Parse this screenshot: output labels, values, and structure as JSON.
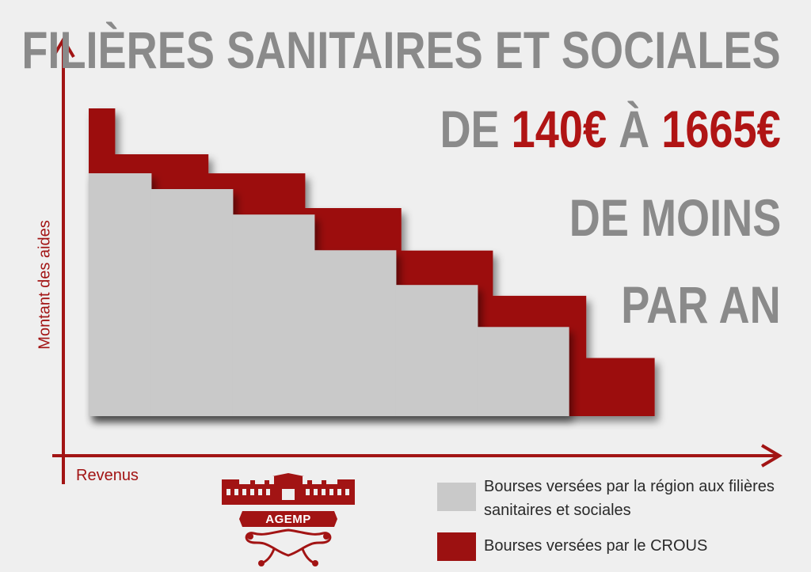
{
  "title": {
    "line1": "FILIÈRES SANITAIRES ET SOCIALES",
    "line2_prefix": "DE ",
    "line2_value1": "140€",
    "line2_middle": " À ",
    "line2_value2": "1665€",
    "line3": "DE MOINS",
    "line4": "PAR AN"
  },
  "logo_text": "AGEMP",
  "colors": {
    "region": "#c9c9c9",
    "crous": "#9c1111",
    "axis": "#a21414",
    "title_gray": "#8a8a8a",
    "accent": "#b01414",
    "background": "#efefef"
  },
  "chart_data": {
    "type": "area",
    "xlabel": "Revenus",
    "ylabel": "Montant des aides",
    "series": [
      {
        "name": "Bourses versées par la région aux filières sanitaires et sociales",
        "color": "#c9c9c9",
        "steps": [
          {
            "x0": 0,
            "x1": 0.13,
            "y": 1.0
          },
          {
            "x0": 0.13,
            "x1": 0.3,
            "y": 0.935
          },
          {
            "x0": 0.3,
            "x1": 0.47,
            "y": 0.83
          },
          {
            "x0": 0.47,
            "x1": 0.64,
            "y": 0.683
          },
          {
            "x0": 0.64,
            "x1": 0.81,
            "y": 0.54
          },
          {
            "x0": 0.81,
            "x1": 1.0,
            "y": 0.367
          }
        ]
      },
      {
        "name": "Bourses versées par le CROUS",
        "color": "#9c1111",
        "steps": [
          {
            "x0": 0,
            "x1": 0.046,
            "y": 1.0
          },
          {
            "x0": 0.046,
            "x1": 0.211,
            "y": 0.851
          },
          {
            "x0": 0.211,
            "x1": 0.382,
            "y": 0.789
          },
          {
            "x0": 0.382,
            "x1": 0.552,
            "y": 0.676
          },
          {
            "x0": 0.552,
            "x1": 0.714,
            "y": 0.538
          },
          {
            "x0": 0.714,
            "x1": 0.879,
            "y": 0.391
          },
          {
            "x0": 0.879,
            "x1": 1.0,
            "y": 0.189
          }
        ]
      }
    ],
    "legend": [
      {
        "label": "Bourses versées par la région aux filières sanitaires et sociales",
        "color": "#c9c9c9"
      },
      {
        "label": "Bourses versées par le CROUS",
        "color": "#9c1111"
      }
    ],
    "grid": false,
    "ticks": false
  }
}
